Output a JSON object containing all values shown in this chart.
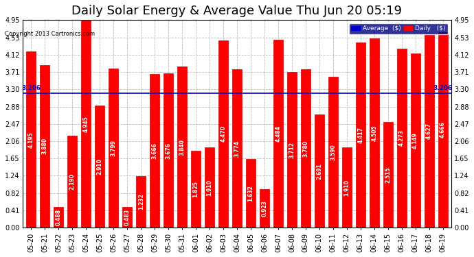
{
  "title": "Daily Solar Energy & Average Value Thu Jun 20 05:19",
  "copyright": "Copyright 2013 Cartronics.com",
  "categories": [
    "05-20",
    "05-21",
    "05-22",
    "05-23",
    "05-24",
    "05-25",
    "05-26",
    "05-27",
    "05-28",
    "05-29",
    "05-30",
    "05-31",
    "06-01",
    "06-02",
    "06-03",
    "06-04",
    "06-05",
    "06-06",
    "06-07",
    "06-08",
    "06-09",
    "06-10",
    "06-11",
    "06-12",
    "06-13",
    "06-14",
    "06-15",
    "06-16",
    "06-17",
    "06-18",
    "06-19"
  ],
  "values": [
    4.195,
    3.88,
    0.488,
    2.19,
    4.945,
    2.91,
    3.799,
    0.483,
    1.232,
    3.666,
    3.676,
    3.84,
    1.825,
    1.91,
    4.47,
    3.774,
    1.632,
    0.923,
    4.484,
    3.712,
    3.78,
    2.691,
    3.59,
    1.91,
    4.417,
    4.505,
    2.515,
    4.273,
    4.149,
    4.627,
    4.666
  ],
  "average": 3.206,
  "bar_color": "#ff0000",
  "bar_edge_color": "#cc0000",
  "average_line_color": "#0000cc",
  "background_color": "#ffffff",
  "plot_bg_color": "#ffffff",
  "grid_color": "#bbbbbb",
  "ylim": [
    0,
    4.95
  ],
  "yticks": [
    0.0,
    0.41,
    0.82,
    1.24,
    1.65,
    2.06,
    2.47,
    2.88,
    3.3,
    3.71,
    4.12,
    4.53,
    4.95
  ],
  "title_fontsize": 13,
  "tick_fontsize": 7,
  "avg_label": "3.206",
  "legend_avg_color": "#0000cc",
  "legend_daily_color": "#ff0000",
  "legend_avg_text": "Average  ($)",
  "legend_daily_text": "Daily   ($)"
}
